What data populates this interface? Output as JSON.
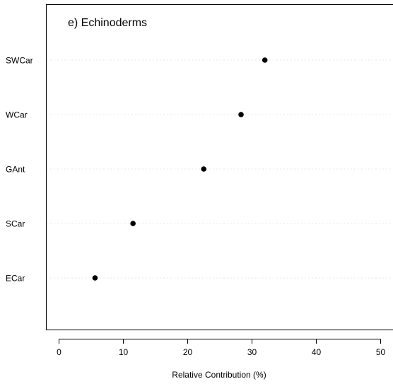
{
  "chart_data": {
    "type": "scatter",
    "title": "e) Echinoderms",
    "xlabel": "Relative Contribution (%)",
    "ylabel": "",
    "xlim": [
      -2,
      51
    ],
    "xticks": [
      "0",
      "10",
      "20",
      "30",
      "40",
      "50"
    ],
    "categories": [
      "SWCar",
      "WCar",
      "GAnt",
      "SCar",
      "ECar"
    ],
    "values": [
      32.0,
      28.3,
      22.5,
      11.5,
      5.6
    ],
    "grid": "horizontal-dotted",
    "point_color": "#000000"
  }
}
